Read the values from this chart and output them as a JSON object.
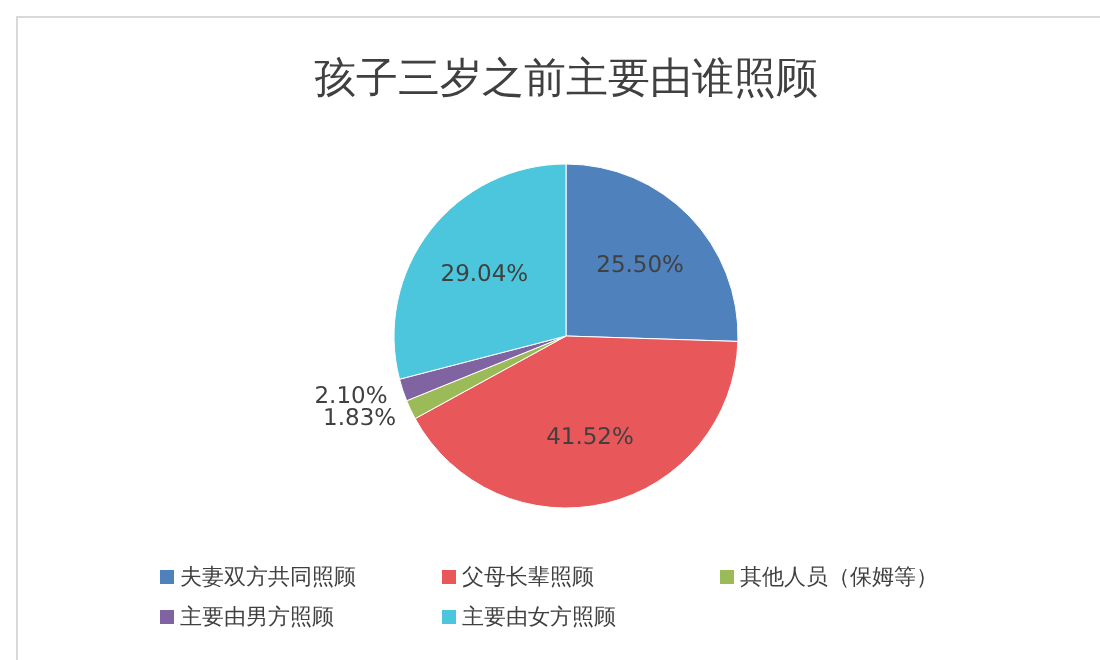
{
  "chart_data": {
    "type": "pie",
    "title": "孩子三岁之前主要由谁照顾",
    "categories": [
      "夫妻双方共同照顾",
      "父母长辈照顾",
      "其他人员（保姆等）",
      "主要由男方照顾",
      "主要由女方照顾"
    ],
    "values": [
      25.5,
      41.52,
      1.83,
      2.1,
      29.04
    ],
    "value_labels": [
      "25.50%",
      "41.52%",
      "1.83%",
      "2.10%",
      "29.04%"
    ],
    "colors": [
      "#4f81bd",
      "#e8585a",
      "#9bbb59",
      "#8064a2",
      "#4bc6dc"
    ],
    "legend": "bottom"
  }
}
